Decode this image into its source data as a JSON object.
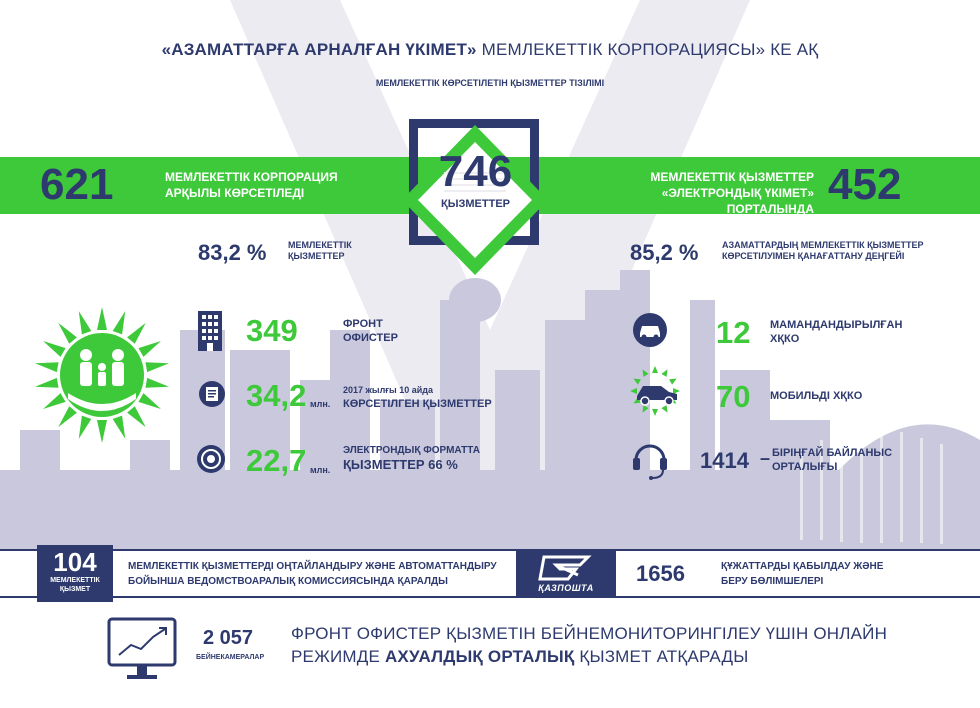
{
  "header": {
    "title_bold": "«АЗАМАТТАРҒА АРНАЛҒАН ҮКІМЕТ»",
    "title_rest": "МЕМЛЕКЕТТІК КОРПОРАЦИЯСЫ» КЕ АҚ",
    "subtitle": "МЕМЛЕКЕТТІК КӨРСЕТІЛЕТІН ҚЫЗМЕТТЕР ТІЗІЛІМІ"
  },
  "center": {
    "number": "746",
    "label": "ҚЫЗМЕТТЕР"
  },
  "left_band": {
    "number": "621",
    "line1": "МЕМЛЕКЕТТІК КОРПОРАЦИЯ",
    "line2": "АРҚЫЛЫ КӨРСЕТІЛЕДІ"
  },
  "right_band": {
    "number": "452",
    "line1": "МЕМЛЕКЕТТІК ҚЫЗМЕТТЕР",
    "line2": "«ЭЛЕКТРОНДЫҚ ҮКІМЕТ» ПОРТАЛЫНДА"
  },
  "left_pct": {
    "value": "83,2 %",
    "line1": "МЕМЛЕКЕТТІК",
    "line2": "ҚЫЗМЕТТЕР"
  },
  "right_pct": {
    "value": "85,2 %",
    "line1": "АЗАМАТТАРДЫҢ МЕМЛЕКЕТТІК ҚЫЗМЕТТЕР",
    "line2": "КӨРСЕТІЛУІМЕН ҚАНАҒАТТАНУ ДЕҢГЕЙІ"
  },
  "left_stats": [
    {
      "icon": "building-icon",
      "number": "349",
      "unit": "",
      "small": "",
      "line1": "ФРОНТ",
      "line2": "ОФИСТЕР"
    },
    {
      "icon": "document-icon",
      "number": "34,2",
      "unit": "млн.",
      "small": "2017 жылғы 10 айда",
      "line1": "",
      "line2": "КӨРСЕТІЛГЕН ҚЫЗМЕТТЕР"
    },
    {
      "icon": "touch-icon",
      "number": "22,7",
      "unit": "млн.",
      "small": "",
      "line1": "ЭЛЕКТРОНДЫҚ ФОРМАТТА",
      "line2": "ҚЫЗМЕТТЕР 66 %"
    }
  ],
  "right_stats": [
    {
      "icon": "car-icon",
      "number": "12",
      "line1": "МАМАНДАНДЫРЫЛҒАН",
      "line2": "ХҚКО"
    },
    {
      "icon": "mobile-car-icon",
      "number": "70",
      "line1": "МОБИЛЬДІ ХҚКО",
      "line2": ""
    },
    {
      "icon": "headset-icon",
      "number": "1414",
      "dash": "–",
      "line1": "БІРІҢҒАЙ БАЙЛАНЫС",
      "line2": "ОРТАЛЫҒЫ"
    }
  ],
  "strip": {
    "box_number": "104",
    "box_line1": "МЕМЛЕКЕТТІК",
    "box_line2": "ҚЫЗМЕТ",
    "text_line1": "МЕМЛЕКЕТТІК ҚЫЗМЕТТЕРДІ ОҢТАЙЛАНДЫРУ ЖӘНЕ АВТОМАТТАНДЫРУ",
    "text_line2": "БОЙЫНША ВЕДОМСТВОАРАЛЫҚ КОМИССИЯСЫНДА ҚАРАЛДЫ",
    "kazpost_label": "ҚАЗПОШТА",
    "right_number": "1656",
    "right_line1": "ҚҰЖАТТАРДЫ ҚАБЫЛДАУ ЖӘНЕ",
    "right_line2": "БЕРУ БӨЛІМШЕЛЕРІ"
  },
  "bottom": {
    "number": "2 057",
    "number_label": "БЕЙНЕКАМЕРАЛАР",
    "line1": "ФРОНТ ОФИСТЕР ҚЫЗМЕТІН БЕЙНЕМОНИТОРИНГІЛЕУ ҮШІН ОНЛАЙН",
    "line2_pre": "РЕЖИМДЕ",
    "line2_bold": "АХУАЛДЫҚ ОРТАЛЫҚ",
    "line2_post": "ҚЫЗМЕТ АТҚАРАДЫ"
  },
  "colors": {
    "navy": "#2e3a6e",
    "green": "#3ec93a",
    "skyline": "#c9c8dc",
    "watermark": "#e6e6ee"
  }
}
